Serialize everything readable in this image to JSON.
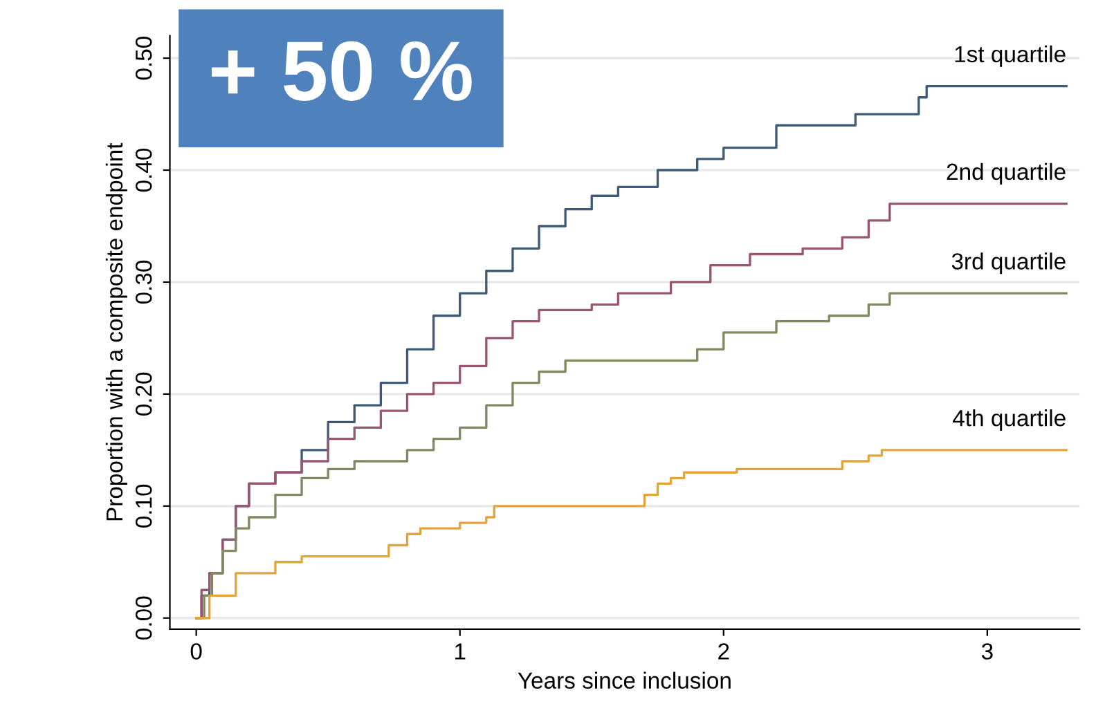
{
  "chart_data": {
    "type": "step",
    "xlabel": "Years since inclusion",
    "ylabel": "Proportion with a composite endpoint",
    "xlim": [
      -0.1,
      3.35
    ],
    "ylim": [
      -0.01,
      0.52
    ],
    "xticks": [
      0,
      1,
      2,
      3
    ],
    "yticks": [
      {
        "value": 0,
        "label": "0.00"
      },
      {
        "value": 0.1,
        "label": "0.10"
      },
      {
        "value": 0.2,
        "label": "0.20"
      },
      {
        "value": 0.3,
        "label": "0.30"
      },
      {
        "value": 0.4,
        "label": "0.40"
      },
      {
        "value": 0.5,
        "label": "0.50"
      }
    ],
    "grid": "y",
    "legend": false,
    "annotations": [
      "+ 50 %"
    ],
    "series": [
      {
        "name": "1st quartile",
        "color": "#3d5a78",
        "x": [
          0,
          0.02,
          0.05,
          0.1,
          0.15,
          0.2,
          0.3,
          0.4,
          0.5,
          0.6,
          0.7,
          0.8,
          0.9,
          1.0,
          1.1,
          1.2,
          1.3,
          1.4,
          1.5,
          1.6,
          1.75,
          1.9,
          2.0,
          2.2,
          2.5,
          2.74,
          2.77,
          3.3
        ],
        "values": [
          0,
          0.02,
          0.04,
          0.07,
          0.1,
          0.12,
          0.13,
          0.15,
          0.175,
          0.19,
          0.21,
          0.24,
          0.27,
          0.29,
          0.31,
          0.33,
          0.35,
          0.365,
          0.377,
          0.385,
          0.4,
          0.41,
          0.42,
          0.44,
          0.45,
          0.465,
          0.475,
          0.475
        ]
      },
      {
        "name": "2nd quartile",
        "color": "#9a5573",
        "x": [
          0,
          0.02,
          0.05,
          0.1,
          0.15,
          0.2,
          0.3,
          0.4,
          0.5,
          0.6,
          0.7,
          0.8,
          0.9,
          1.0,
          1.1,
          1.2,
          1.3,
          1.5,
          1.6,
          1.8,
          1.95,
          2.1,
          2.3,
          2.45,
          2.55,
          2.63,
          3.3
        ],
        "values": [
          0,
          0.025,
          0.04,
          0.07,
          0.1,
          0.12,
          0.13,
          0.14,
          0.16,
          0.17,
          0.185,
          0.2,
          0.21,
          0.225,
          0.25,
          0.265,
          0.275,
          0.28,
          0.29,
          0.3,
          0.315,
          0.325,
          0.33,
          0.34,
          0.355,
          0.37,
          0.37
        ]
      },
      {
        "name": "3rd quartile",
        "color": "#7d8a62",
        "x": [
          0,
          0.03,
          0.06,
          0.1,
          0.15,
          0.2,
          0.3,
          0.4,
          0.5,
          0.6,
          0.8,
          0.9,
          1.0,
          1.1,
          1.2,
          1.3,
          1.4,
          1.9,
          2.0,
          2.2,
          2.4,
          2.55,
          2.63,
          3.3
        ],
        "values": [
          0,
          0.02,
          0.04,
          0.06,
          0.08,
          0.09,
          0.11,
          0.125,
          0.133,
          0.14,
          0.15,
          0.16,
          0.17,
          0.19,
          0.21,
          0.22,
          0.23,
          0.24,
          0.255,
          0.265,
          0.27,
          0.28,
          0.29,
          0.29
        ]
      },
      {
        "name": "4th quartile",
        "color": "#e3a537",
        "x": [
          0,
          0.05,
          0.15,
          0.3,
          0.4,
          0.73,
          0.8,
          0.85,
          1.0,
          1.1,
          1.13,
          1.65,
          1.7,
          1.75,
          1.8,
          1.85,
          2.05,
          2.45,
          2.55,
          2.6,
          3.3
        ],
        "values": [
          0,
          0.02,
          0.04,
          0.05,
          0.055,
          0.065,
          0.075,
          0.08,
          0.085,
          0.09,
          0.1,
          0.1,
          0.11,
          0.12,
          0.125,
          0.13,
          0.133,
          0.14,
          0.145,
          0.15,
          0.15
        ]
      }
    ]
  }
}
